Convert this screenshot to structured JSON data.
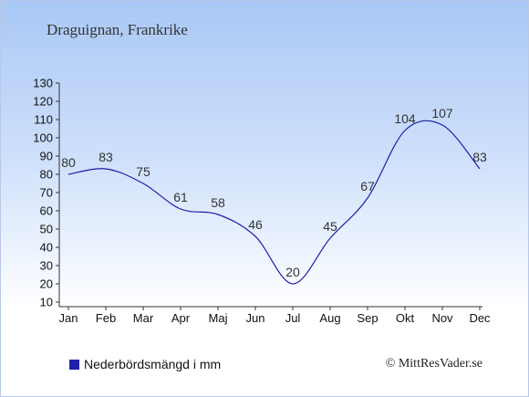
{
  "title": "Draguignan, Frankrike",
  "legend": {
    "label": "Nederbördsmängd i mm"
  },
  "credit": "© MittResVader.se",
  "colors": {
    "line": "#1f1fa8",
    "axis": "#333333",
    "label": "#333333"
  },
  "chart_data": {
    "type": "line",
    "title": "Draguignan, Frankrike",
    "categories": [
      "Jan",
      "Feb",
      "Mar",
      "Apr",
      "Maj",
      "Jun",
      "Jul",
      "Aug",
      "Sep",
      "Okt",
      "Nov",
      "Dec"
    ],
    "series": [
      {
        "name": "Nederbördsmängd i mm",
        "values": [
          80,
          83,
          75,
          61,
          58,
          46,
          20,
          45,
          67,
          104,
          107,
          83
        ]
      }
    ],
    "data_labels": [
      "80",
      "83",
      "75",
      "61",
      "58",
      "46",
      "20",
      "45",
      "67",
      "104",
      "107",
      "83"
    ],
    "yticks": [
      10,
      20,
      30,
      40,
      50,
      60,
      70,
      80,
      90,
      100,
      110,
      120,
      130
    ],
    "ylim": [
      10,
      130
    ],
    "xlabel": "",
    "ylabel": "",
    "grid": false,
    "legend_position": "bottom-left"
  }
}
